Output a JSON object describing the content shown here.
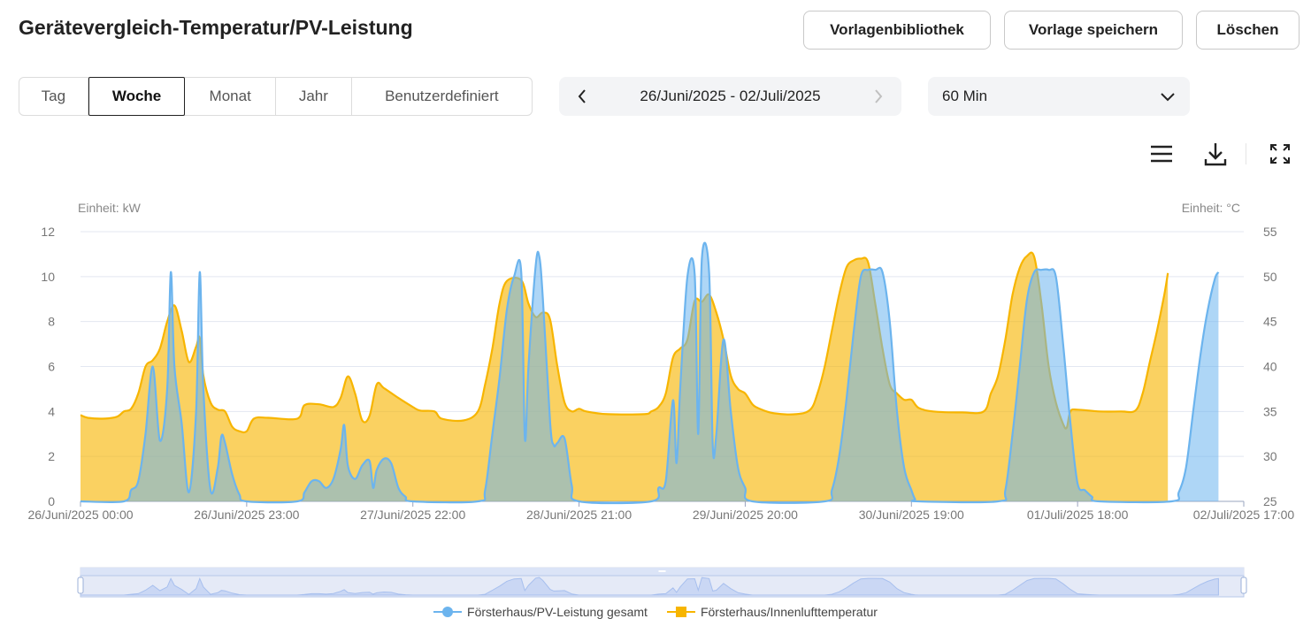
{
  "header": {
    "title": "Gerätevergleich-Temperatur/PV-Leistung",
    "buttons": [
      "Vorlagenbibliothek",
      "Vorlage speichern",
      "Löschen"
    ]
  },
  "period_tabs": [
    "Tag",
    "Woche",
    "Monat",
    "Jahr",
    "Benutzerdefiniert"
  ],
  "period_active": "Woche",
  "date_range": "26/Juni/2025 - 02/Juli/2025",
  "interval": "60 Min",
  "toolbar_icons": [
    "menu-icon",
    "download-icon",
    "fullscreen-icon"
  ],
  "colors": {
    "pv": "#6cb4ee",
    "temp": "#f7b500",
    "grid": "#e3e7f1",
    "slider": "#dbe4f7"
  },
  "chart_data": {
    "type": "area",
    "y_left_unit": "Einheit: kW",
    "y_right_unit": "Einheit: °C",
    "y_left_ticks": [
      "0",
      "2",
      "4",
      "6",
      "8",
      "10",
      "12"
    ],
    "y_right_ticks": [
      "25",
      "30",
      "35",
      "40",
      "45",
      "50",
      "55"
    ],
    "ylim_left": [
      0,
      12
    ],
    "ylim_right": [
      25,
      55
    ],
    "xlim_hours": [
      0,
      161
    ],
    "x_tick_labels": [
      "26/Juni/2025 00:00",
      "26/Juni/2025 23:00",
      "27/Juni/2025 22:00",
      "28/Juni/2025 21:00",
      "29/Juni/2025 20:00",
      "30/Juni/2025 19:00",
      "01/Juli/2025 18:00",
      "02/Juli/2025 17:00"
    ],
    "x_tick_hours": [
      0,
      23,
      46,
      69,
      92,
      115,
      138,
      161
    ],
    "series": [
      {
        "name": "Försterhaus/PV-Leistung gesamt",
        "axis": "left",
        "unit": "kW",
        "points": [
          [
            0,
            0
          ],
          [
            6,
            0
          ],
          [
            7,
            0.5
          ],
          [
            8,
            0.9
          ],
          [
            9,
            3
          ],
          [
            10,
            6
          ],
          [
            11,
            2.7
          ],
          [
            12,
            5
          ],
          [
            12.5,
            10.2
          ],
          [
            13,
            6
          ],
          [
            14,
            3.5
          ],
          [
            15,
            0.4
          ],
          [
            16,
            4
          ],
          [
            16.5,
            10.2
          ],
          [
            17,
            5
          ],
          [
            18,
            0.5
          ],
          [
            19,
            1.5
          ],
          [
            19.5,
            2.9
          ],
          [
            20,
            2.6
          ],
          [
            21,
            1.2
          ],
          [
            22,
            0.3
          ],
          [
            23,
            0
          ],
          [
            30,
            0
          ],
          [
            31,
            0.4
          ],
          [
            32,
            0.9
          ],
          [
            33,
            0.9
          ],
          [
            34,
            0.6
          ],
          [
            35,
            1
          ],
          [
            36,
            2.3
          ],
          [
            36.5,
            3.4
          ],
          [
            37,
            1.6
          ],
          [
            38,
            1
          ],
          [
            39,
            1.6
          ],
          [
            40,
            1.8
          ],
          [
            40.5,
            0.6
          ],
          [
            41,
            1.4
          ],
          [
            42,
            1.9
          ],
          [
            43,
            1.7
          ],
          [
            44,
            0.6
          ],
          [
            45,
            0.2
          ],
          [
            46,
            0
          ],
          [
            55,
            0
          ],
          [
            56,
            0.5
          ],
          [
            57,
            3
          ],
          [
            58,
            5.5
          ],
          [
            59,
            8.5
          ],
          [
            60,
            10
          ],
          [
            61,
            10.2
          ],
          [
            61.5,
            2.8
          ],
          [
            62,
            6
          ],
          [
            63,
            10.5
          ],
          [
            63.5,
            10.9
          ],
          [
            64,
            9
          ],
          [
            65,
            3.5
          ],
          [
            65.5,
            2.5
          ],
          [
            66,
            2.6
          ],
          [
            67,
            2.8
          ],
          [
            68,
            0.7
          ],
          [
            69,
            0
          ],
          [
            79,
            0
          ],
          [
            80,
            0.6
          ],
          [
            81,
            0.9
          ],
          [
            82,
            4.5
          ],
          [
            82.5,
            1.7
          ],
          [
            83,
            5
          ],
          [
            84,
            10
          ],
          [
            85,
            10.1
          ],
          [
            85.5,
            3
          ],
          [
            86,
            10.8
          ],
          [
            87,
            10.2
          ],
          [
            87.5,
            2.5
          ],
          [
            88,
            3
          ],
          [
            89,
            7.2
          ],
          [
            90,
            4
          ],
          [
            91,
            1.5
          ],
          [
            92,
            0.6
          ],
          [
            93,
            0
          ],
          [
            103,
            0
          ],
          [
            104,
            0.5
          ],
          [
            105,
            2
          ],
          [
            106,
            4.5
          ],
          [
            107,
            7.5
          ],
          [
            108,
            10
          ],
          [
            109,
            10.3
          ],
          [
            110,
            10.3
          ],
          [
            111,
            10.2
          ],
          [
            112,
            8
          ],
          [
            113,
            4
          ],
          [
            114,
            1.5
          ],
          [
            115,
            0.5
          ],
          [
            115.5,
            0.1
          ],
          [
            116,
            0
          ],
          [
            127,
            0
          ],
          [
            128,
            0.5
          ],
          [
            129,
            3
          ],
          [
            130,
            6
          ],
          [
            131,
            9
          ],
          [
            132,
            10.2
          ],
          [
            133,
            10.3
          ],
          [
            134,
            10.3
          ],
          [
            135,
            10
          ],
          [
            136,
            7
          ],
          [
            137,
            3.5
          ],
          [
            138,
            0.8
          ],
          [
            139,
            0.5
          ],
          [
            140,
            0.2
          ],
          [
            141,
            0
          ],
          [
            151,
            0
          ],
          [
            152,
            0.4
          ],
          [
            153,
            1.5
          ],
          [
            154,
            4
          ],
          [
            155,
            6.5
          ],
          [
            156,
            8.5
          ],
          [
            157,
            9.9
          ],
          [
            157.5,
            10.2
          ]
        ]
      },
      {
        "name": "Försterhaus/Innenlufttemperatur",
        "axis": "right",
        "unit": "°C",
        "points": [
          [
            0,
            34.6
          ],
          [
            1,
            34.3
          ],
          [
            3,
            34.2
          ],
          [
            5,
            34.4
          ],
          [
            6,
            35
          ],
          [
            7,
            35.3
          ],
          [
            8,
            37
          ],
          [
            9,
            40
          ],
          [
            10,
            40.7
          ],
          [
            11,
            42
          ],
          [
            12,
            45
          ],
          [
            13,
            46.8
          ],
          [
            14,
            44
          ],
          [
            15,
            40.5
          ],
          [
            16,
            42.2
          ],
          [
            16.5,
            43.2
          ],
          [
            17,
            39
          ],
          [
            18,
            36
          ],
          [
            19,
            35.2
          ],
          [
            20,
            35
          ],
          [
            21,
            33.3
          ],
          [
            22,
            32.8
          ],
          [
            23,
            32.8
          ],
          [
            24,
            34.2
          ],
          [
            26,
            34.3
          ],
          [
            30,
            34.2
          ],
          [
            31,
            35.7
          ],
          [
            33,
            35.8
          ],
          [
            35,
            35.5
          ],
          [
            36,
            36.5
          ],
          [
            37,
            38.9
          ],
          [
            38,
            37
          ],
          [
            39,
            34
          ],
          [
            40,
            34.5
          ],
          [
            41,
            38
          ],
          [
            42,
            37.6
          ],
          [
            44,
            36.5
          ],
          [
            46,
            35.5
          ],
          [
            47,
            35.1
          ],
          [
            49,
            35
          ],
          [
            50,
            34.2
          ],
          [
            53,
            34
          ],
          [
            55,
            35
          ],
          [
            56,
            38
          ],
          [
            57,
            42
          ],
          [
            58,
            47
          ],
          [
            59,
            49.5
          ],
          [
            61,
            49.6
          ],
          [
            62,
            47
          ],
          [
            63,
            45.5
          ],
          [
            64,
            46
          ],
          [
            65,
            45.2
          ],
          [
            66,
            40
          ],
          [
            67,
            36
          ],
          [
            68,
            35
          ],
          [
            69,
            35.3
          ],
          [
            70,
            35
          ],
          [
            73,
            34.7
          ],
          [
            78,
            34.7
          ],
          [
            79,
            35
          ],
          [
            80,
            35.5
          ],
          [
            81,
            37
          ],
          [
            82,
            41
          ],
          [
            83,
            42
          ],
          [
            84,
            43
          ],
          [
            85,
            47.3
          ],
          [
            86,
            47.2
          ],
          [
            87,
            48
          ],
          [
            88,
            46
          ],
          [
            89,
            43
          ],
          [
            90,
            39
          ],
          [
            91,
            37.5
          ],
          [
            92,
            37
          ],
          [
            93,
            35.8
          ],
          [
            94,
            35.3
          ],
          [
            96,
            34.8
          ],
          [
            99,
            34.7
          ],
          [
            101,
            35.2
          ],
          [
            102,
            37
          ],
          [
            103,
            40
          ],
          [
            104,
            44
          ],
          [
            105,
            48
          ],
          [
            106,
            51
          ],
          [
            107,
            51.8
          ],
          [
            108,
            52
          ],
          [
            109,
            51.6
          ],
          [
            110,
            47
          ],
          [
            111,
            42
          ],
          [
            112,
            38
          ],
          [
            113,
            37
          ],
          [
            114,
            36.3
          ],
          [
            115,
            36.3
          ],
          [
            116,
            35.4
          ],
          [
            118,
            35
          ],
          [
            122,
            34.9
          ],
          [
            125,
            35
          ],
          [
            126,
            37
          ],
          [
            127,
            39
          ],
          [
            128,
            43
          ],
          [
            129,
            48
          ],
          [
            130,
            51
          ],
          [
            131,
            52.3
          ],
          [
            132,
            52.2
          ],
          [
            133,
            47
          ],
          [
            134,
            40
          ],
          [
            135,
            36
          ],
          [
            136,
            33.6
          ],
          [
            136.5,
            33.2
          ],
          [
            137,
            35
          ],
          [
            138,
            35.2
          ],
          [
            141,
            35
          ],
          [
            144,
            35
          ],
          [
            146,
            35.1
          ],
          [
            147,
            37
          ],
          [
            148,
            40.5
          ],
          [
            149,
            44
          ],
          [
            150,
            48
          ],
          [
            150.5,
            50.4
          ]
        ]
      }
    ],
    "legend_position": "bottom-center"
  }
}
